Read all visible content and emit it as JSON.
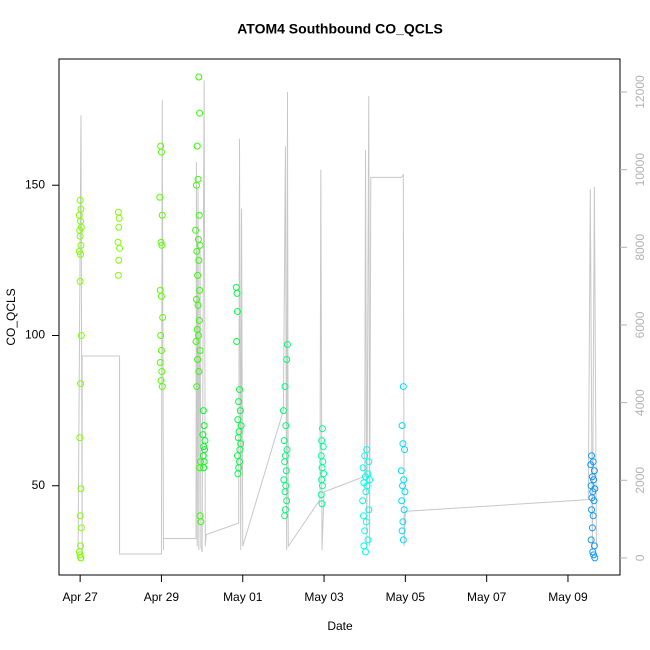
{
  "chart_data": {
    "type": "scatter",
    "title": "ATOM4 Southbound CO_QCLS",
    "x_label": "Date",
    "y_label": "CO_QCLS",
    "xlim": [
      -0.52,
      13.28
    ],
    "xticks": [
      {
        "value": 0,
        "label": "Apr 27"
      },
      {
        "value": 2,
        "label": "Apr 29"
      },
      {
        "value": 4,
        "label": "May 01"
      },
      {
        "value": 6,
        "label": "May 03"
      },
      {
        "value": 8,
        "label": "May 05"
      },
      {
        "value": 10,
        "label": "May 07"
      },
      {
        "value": 12,
        "label": "May 09"
      }
    ],
    "ylim": [
      20.3,
      192
    ],
    "yticks": [
      50,
      100,
      150
    ],
    "y2lim": [
      -440,
      12850
    ],
    "y2ticks": [
      0,
      2000,
      4000,
      6000,
      8000,
      10000,
      12000
    ],
    "y2_color": "#b3b3b3",
    "series": [
      {
        "type": "line",
        "axis": "y2",
        "color": "#c8c8c8",
        "x": [
          -0.05,
          0.02,
          0.05,
          0.05,
          0.97,
          0.97,
          2.0,
          2.02,
          2.05,
          2.05,
          2.85,
          2.86,
          2.88,
          2.9,
          2.92,
          2.95,
          2.97,
          3.0,
          3.05,
          3.08,
          3.1,
          3.9,
          3.92,
          3.95,
          3.97,
          4.0,
          5.0,
          5.05,
          5.08,
          5.1,
          5.12,
          5.9,
          5.92,
          5.95,
          6.0,
          7.0,
          7.02,
          7.05,
          7.1,
          7.12,
          7.15,
          7.9,
          7.95,
          7.97,
          8.0,
          12.5,
          12.55,
          12.6,
          12.65,
          12.7
        ],
        "values": [
          200,
          11400,
          100,
          5200,
          5200,
          100,
          100,
          11800,
          200,
          500,
          500,
          10200,
          300,
          9500,
          200,
          8000,
          300,
          150,
          12300,
          300,
          600,
          900,
          10800,
          200,
          9000,
          300,
          3800,
          10600,
          200,
          12000,
          300,
          1500,
          10000,
          200,
          1700,
          2100,
          10500,
          300,
          11900,
          300,
          9800,
          9800,
          9870,
          300,
          1200,
          1500,
          9500,
          200,
          9560,
          300
        ]
      },
      {
        "color": "#7fff00",
        "x": [
          0,
          0.02,
          -0.02,
          0.01,
          0.03,
          -0.01,
          0,
          0.02,
          -0.02,
          0.01,
          0,
          0.03,
          0.01,
          -0.01,
          0.02,
          0,
          0.03,
          0.01,
          -0.02,
          0,
          0.02,
          0.01
        ],
        "values": [
          145,
          142,
          140,
          138,
          136,
          135,
          133,
          130,
          128,
          127,
          118,
          100,
          84,
          66,
          49,
          40,
          36,
          30,
          28,
          27,
          26,
          26
        ]
      },
      {
        "color": "#7fff00",
        "x": [
          0.94,
          0.96,
          0.95,
          0.93,
          0.97,
          0.95,
          0.94
        ],
        "values": [
          141,
          139,
          136,
          131,
          129,
          125,
          120
        ]
      },
      {
        "color": "#55ff00",
        "x": [
          1.98,
          2.0,
          1.96,
          2.02,
          1.99,
          2.01,
          1.97,
          2.0,
          2.03,
          1.98,
          2.0,
          1.97,
          2.01,
          1.99,
          2.02
        ],
        "values": [
          163,
          161,
          146,
          140,
          131,
          130,
          115,
          113,
          106,
          100,
          95,
          91,
          88,
          85,
          83
        ]
      },
      {
        "color": "#33ff00",
        "x": [
          2.92,
          2.94,
          2.88,
          2.9,
          2.86,
          2.93,
          2.84,
          2.91,
          2.95,
          2.87,
          2.92,
          2.89,
          2.94,
          2.86,
          2.9,
          2.93,
          2.88,
          2.91,
          2.85,
          2.95,
          2.89,
          2.92,
          2.87,
          2.96,
          2.94,
          2.95,
          2.97
        ],
        "values": [
          186,
          174,
          163,
          152,
          150,
          140,
          135,
          132,
          130,
          128,
          125,
          120,
          115,
          112,
          110,
          105,
          102,
          100,
          98,
          95,
          92,
          88,
          83,
          58,
          56,
          40,
          38
        ]
      },
      {
        "color": "#00ff22",
        "x": [
          3.03,
          3.05,
          3.02,
          3.07,
          3.04,
          3.06,
          3.03,
          3.05,
          3.04
        ],
        "values": [
          75,
          70,
          67,
          65,
          63,
          62,
          60,
          58,
          56
        ]
      },
      {
        "color": "#00ff44",
        "x": [
          3.84,
          3.86,
          3.87,
          3.85,
          3.92,
          3.9,
          3.94,
          3.88,
          3.96,
          3.91,
          3.89,
          3.95,
          3.93,
          3.87,
          3.92,
          3.9,
          3.88
        ],
        "values": [
          116,
          114,
          108,
          98,
          82,
          78,
          75,
          72,
          70,
          68,
          66,
          64,
          62,
          60,
          58,
          56,
          54
        ]
      },
      {
        "color": "#00ff77",
        "x": [
          5.1,
          5.08,
          5.04,
          5.0,
          5.06,
          5.02,
          5.09,
          5.05,
          5.03,
          5.07,
          5.01,
          5.06,
          5.04,
          5.08,
          5.05,
          5.03
        ],
        "values": [
          97,
          92,
          83,
          75,
          70,
          65,
          62,
          60,
          58,
          55,
          52,
          50,
          48,
          45,
          42,
          40
        ]
      },
      {
        "color": "#00ff99",
        "x": [
          5.96,
          5.94,
          5.98,
          5.93,
          5.97,
          5.95,
          5.99,
          5.94,
          5.96,
          5.93,
          5.95
        ],
        "values": [
          69,
          65,
          63,
          60,
          58,
          56,
          54,
          52,
          50,
          47,
          44
        ]
      },
      {
        "color": "#00ffee",
        "x": [
          7.05,
          7.0,
          7.1,
          6.96,
          7.08,
          7.02,
          7.12,
          6.98,
          7.06,
          7.03,
          6.95,
          7.1,
          6.97,
          7.04,
          7.0,
          7.08,
          6.98,
          7.02
        ],
        "values": [
          62,
          60,
          58,
          56,
          54,
          53,
          52,
          51,
          50,
          48,
          45,
          42,
          40,
          38,
          35,
          32,
          30,
          28
        ]
      },
      {
        "color": "#00ddff",
        "x": [
          7.95,
          7.92,
          7.94,
          7.98,
          7.9,
          7.96,
          7.93,
          7.99,
          7.91,
          7.97,
          7.94,
          7.92,
          7.95
        ],
        "values": [
          83,
          70,
          64,
          62,
          55,
          52,
          50,
          48,
          45,
          42,
          38,
          35,
          32
        ]
      },
      {
        "color": "#1199ff",
        "x": [
          12.58,
          12.62,
          12.56,
          12.65,
          12.6,
          12.63,
          12.57,
          12.66,
          12.61,
          12.59,
          12.64,
          12.58,
          12.62,
          12.6,
          12.57,
          12.65,
          12.61,
          12.63,
          12.66
        ],
        "values": [
          60,
          58,
          57,
          55,
          53,
          52,
          50,
          49,
          48,
          46,
          45,
          42,
          40,
          36,
          32,
          30,
          28,
          27,
          26
        ]
      }
    ]
  }
}
